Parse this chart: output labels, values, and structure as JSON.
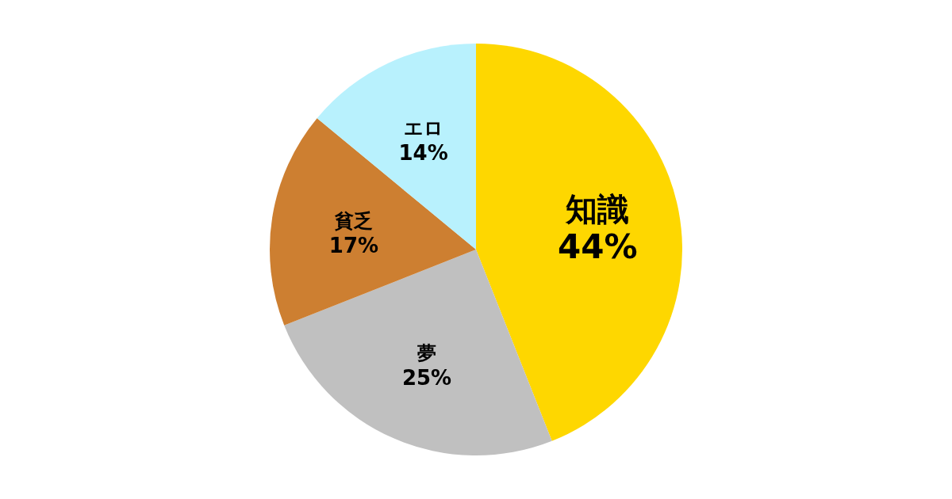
{
  "chart_data": {
    "type": "pie",
    "categories": [
      "知識",
      "夢",
      "貧乏",
      "エロ"
    ],
    "values": [
      44,
      25,
      17,
      14
    ],
    "colors": [
      "#fed700",
      "#c0c0c0",
      "#cd7f31",
      "#b8f1fd"
    ],
    "value_labels": [
      "44%",
      "25%",
      "17%",
      "14%"
    ]
  }
}
